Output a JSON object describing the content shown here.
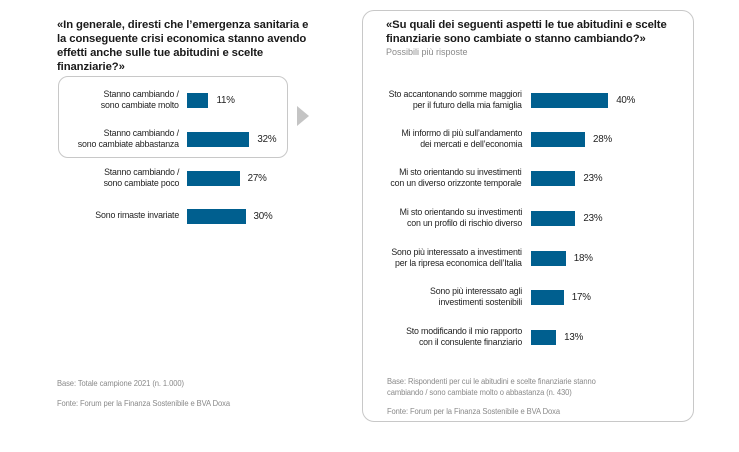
{
  "colors": {
    "bar": "#005f8f",
    "border": "#c8c8c8",
    "arrow": "#c4c4c4",
    "note": "#8a8a8a"
  },
  "left": {
    "title": "«In generale, diresti che l’emergenza sanitaria e la conseguente crisi economica stanno avendo effetti anche sulle tue abitudini e scelte finanziarie?»",
    "base": "Base: Totale campione 2021 (n. 1.000)",
    "source": "Fonte: Forum per la Finanza Sostenibile e BVA Doxa"
  },
  "right": {
    "title": "«Su quali dei seguenti aspetti le tue abitudini e scelte finanziarie sono cambiate o stanno cambiando?»",
    "subtitle": "Possibili più risposte",
    "base_line1": "Base: Rispondenti per cui le abitudini e scelte finanziarie stanno",
    "base_line2": "cambiando / sono cambiate molto o abbastanza (n. 430)",
    "source": "Fonte: Forum per la Finanza Sostenibile e BVA Doxa"
  },
  "chart_data": [
    {
      "type": "bar",
      "orientation": "horizontal",
      "title": "«In generale, diresti che l’emergenza sanitaria e la conseguente crisi economica stanno avendo effetti anche sulle tue abitudini e scelte finanziarie?»",
      "categories": [
        [
          "Stanno cambiando /",
          "sono cambiate molto"
        ],
        [
          "Stanno cambiando /",
          "sono cambiate abbastanza"
        ],
        [
          "Stanno cambiando /",
          "sono cambiate poco"
        ],
        [
          "Sono rimaste invariate"
        ]
      ],
      "values": [
        11,
        32,
        27,
        30
      ],
      "value_labels": [
        "11%",
        "32%",
        "27%",
        "30%"
      ],
      "unit": "%",
      "highlighted": [
        0,
        1
      ],
      "xlabel": "",
      "ylabel": "",
      "grid": false
    },
    {
      "type": "bar",
      "orientation": "horizontal",
      "title": "«Su quali dei seguenti aspetti le tue abitudini e scelte finanziarie sono cambiate o stanno cambiando?»",
      "subtitle": "Possibili più risposte",
      "categories": [
        [
          "Sto accantonando somme maggiori",
          "per il futuro della mia famiglia"
        ],
        [
          "Mi informo di più sull’andamento",
          "dei mercati e dell’economia"
        ],
        [
          "Mi sto orientando su investimenti",
          "con un diverso orizzonte temporale"
        ],
        [
          "Mi sto orientando su investimenti",
          "con un profilo di rischio diverso"
        ],
        [
          "Sono più interessato a investimenti",
          "per la ripresa economica dell’Italia"
        ],
        [
          "Sono più interessato agli",
          "investimenti sostenibili"
        ],
        [
          "Sto modificando il mio rapporto",
          "con il consulente finanziario"
        ]
      ],
      "values": [
        40,
        28,
        23,
        23,
        18,
        17,
        13
      ],
      "value_labels": [
        "40%",
        "28%",
        "23%",
        "23%",
        "18%",
        "17%",
        "13%"
      ],
      "unit": "%",
      "xlabel": "",
      "ylabel": "",
      "grid": false
    }
  ]
}
